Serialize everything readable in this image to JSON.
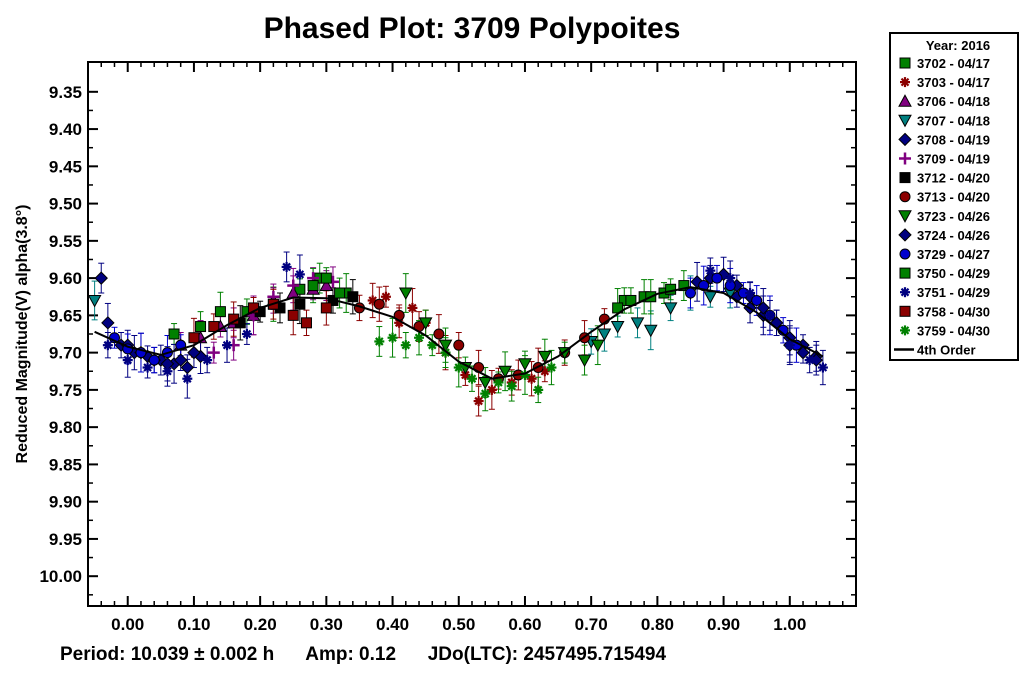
{
  "chart_data": {
    "type": "scatter",
    "title": "Phased Plot: 3709 Polypoites",
    "ylabel": "Reduced Magnitude(V) alpha(3.8°)",
    "xlabel": "",
    "xlim": [
      -0.06,
      1.1
    ],
    "ylim": [
      10.04,
      9.31
    ],
    "y_inverted": true,
    "grid": false,
    "legend_position": "right",
    "x_ticks": [
      "0.00",
      "0.10",
      "0.20",
      "0.30",
      "0.40",
      "0.50",
      "0.60",
      "0.70",
      "0.80",
      "0.90",
      "1.00"
    ],
    "y_ticks": [
      "9.35",
      "9.40",
      "9.45",
      "9.50",
      "9.55",
      "9.60",
      "9.65",
      "9.70",
      "9.75",
      "9.80",
      "9.85",
      "9.90",
      "9.95",
      "10.00"
    ],
    "legend_title": "Year: 2016",
    "fit": {
      "name": "4th Order",
      "x": [
        -0.05,
        0.0,
        0.05,
        0.1,
        0.15,
        0.2,
        0.25,
        0.3,
        0.35,
        0.4,
        0.45,
        0.5,
        0.55,
        0.6,
        0.65,
        0.7,
        0.75,
        0.8,
        0.85,
        0.9,
        0.95,
        1.0,
        1.05
      ],
      "y": [
        9.672,
        9.692,
        9.703,
        9.69,
        9.663,
        9.64,
        9.626,
        9.627,
        9.638,
        9.652,
        9.677,
        9.712,
        9.735,
        9.728,
        9.705,
        9.672,
        9.642,
        9.621,
        9.612,
        9.62,
        9.646,
        9.682,
        9.705
      ]
    },
    "series": [
      {
        "name": "3702 - 04/17",
        "color": "#008000",
        "marker": "square",
        "x": [
          0.07,
          0.11,
          0.14,
          0.18,
          0.22,
          0.26,
          0.29,
          0.33,
          0.75,
          0.78,
          0.81,
          0.84
        ],
        "y": [
          9.675,
          9.665,
          9.645,
          9.645,
          9.635,
          9.615,
          9.6,
          9.62,
          9.63,
          9.625,
          9.62,
          9.61
        ]
      },
      {
        "name": "3703 - 04/17",
        "color": "#8B0000",
        "marker": "asterisk",
        "x": [
          0.37,
          0.39,
          0.41,
          0.43,
          0.45,
          0.48,
          0.51,
          0.53,
          0.55,
          0.58,
          0.61,
          0.63
        ],
        "y": [
          9.63,
          9.625,
          9.66,
          9.64,
          9.66,
          9.7,
          9.73,
          9.765,
          9.75,
          9.74,
          9.735,
          9.725
        ]
      },
      {
        "name": "3706 - 04/18",
        "color": "#800080",
        "marker": "triangle-up",
        "x": [
          0.08,
          0.11,
          0.14,
          0.16,
          0.19,
          0.22,
          0.25,
          0.28,
          0.3
        ],
        "y": [
          9.69,
          9.68,
          9.665,
          9.66,
          9.65,
          9.63,
          9.62,
          9.615,
          9.61
        ]
      },
      {
        "name": "3707 - 04/18",
        "color": "#008080",
        "marker": "triangle-down",
        "x": [
          -0.05,
          0.7,
          0.72,
          0.74,
          0.77,
          0.79,
          0.82,
          0.85,
          0.88,
          0.91
        ],
        "y": [
          9.63,
          9.685,
          9.675,
          9.665,
          9.66,
          9.67,
          9.64,
          9.62,
          9.625,
          9.62
        ]
      },
      {
        "name": "3708 - 04/19",
        "color": "#000080",
        "marker": "diamond",
        "x": [
          -0.04,
          -0.03,
          -0.01,
          0.01,
          0.03,
          0.05,
          0.07,
          0.09,
          0.11,
          0.92,
          0.94,
          0.96,
          0.98,
          1.0,
          1.02,
          1.04
        ],
        "y": [
          9.6,
          9.66,
          9.69,
          9.7,
          9.705,
          9.71,
          9.715,
          9.72,
          9.705,
          9.625,
          9.64,
          9.65,
          9.66,
          9.68,
          9.69,
          9.705
        ]
      },
      {
        "name": "3709 - 04/19",
        "color": "#800080",
        "marker": "plus",
        "x": [
          0.13,
          0.16,
          0.19,
          0.22,
          0.25,
          0.28,
          0.31
        ],
        "y": [
          9.7,
          9.69,
          9.65,
          9.625,
          9.61,
          9.6,
          9.605
        ]
      },
      {
        "name": "3712 - 04/20",
        "color": "#000000",
        "marker": "square",
        "x": [
          0.17,
          0.2,
          0.23,
          0.26,
          0.31,
          0.34
        ],
        "y": [
          9.66,
          9.645,
          9.64,
          9.635,
          9.63,
          9.625
        ]
      },
      {
        "name": "3713 - 04/20",
        "color": "#8B0000",
        "marker": "circle",
        "x": [
          0.35,
          0.38,
          0.41,
          0.44,
          0.47,
          0.5,
          0.53,
          0.56,
          0.59,
          0.62,
          0.66,
          0.69,
          0.72
        ],
        "y": [
          9.64,
          9.635,
          9.65,
          9.665,
          9.675,
          9.69,
          9.72,
          9.735,
          9.73,
          9.72,
          9.7,
          9.68,
          9.655
        ]
      },
      {
        "name": "3723 - 04/26",
        "color": "#008000",
        "marker": "triangle-down",
        "x": [
          0.42,
          0.45,
          0.48,
          0.51,
          0.54,
          0.57,
          0.6,
          0.63,
          0.66,
          0.69,
          0.71
        ],
        "y": [
          9.62,
          9.66,
          9.69,
          9.72,
          9.74,
          9.725,
          9.715,
          9.705,
          9.7,
          9.71,
          9.69
        ]
      },
      {
        "name": "3724 - 04/26",
        "color": "#000080",
        "marker": "diamond",
        "x": [
          0.0,
          0.02,
          0.04,
          0.06,
          0.08,
          0.1,
          0.86,
          0.88,
          0.9,
          0.92,
          0.94,
          0.96,
          0.98,
          1.0,
          1.02,
          1.04
        ],
        "y": [
          9.69,
          9.7,
          9.71,
          9.715,
          9.71,
          9.7,
          9.605,
          9.6,
          9.595,
          9.61,
          9.625,
          9.64,
          9.66,
          9.69,
          9.7,
          9.71
        ]
      },
      {
        "name": "3729 - 04/27",
        "color": "#0000CD",
        "marker": "circle",
        "x": [
          -0.02,
          0.0,
          0.02,
          0.04,
          0.06,
          0.08,
          0.85,
          0.87,
          0.89,
          0.91,
          0.93,
          0.95,
          0.97,
          0.99,
          1.01
        ],
        "y": [
          9.68,
          9.695,
          9.7,
          9.71,
          9.7,
          9.69,
          9.62,
          9.61,
          9.6,
          9.61,
          9.62,
          9.63,
          9.65,
          9.67,
          9.69
        ]
      },
      {
        "name": "3750 - 04/29",
        "color": "#008000",
        "marker": "square",
        "x": [
          0.28,
          0.3,
          0.32,
          0.74,
          0.76,
          0.79,
          0.82
        ],
        "y": [
          9.61,
          9.6,
          9.62,
          9.64,
          9.63,
          9.625,
          9.615
        ]
      },
      {
        "name": "3751 - 04/29",
        "color": "#000080",
        "marker": "asterisk",
        "x": [
          -0.03,
          0.0,
          0.03,
          0.06,
          0.09,
          0.12,
          0.15,
          0.18,
          0.24,
          0.26,
          0.88,
          0.91,
          0.94,
          0.97,
          1.0,
          1.03,
          1.05
        ],
        "y": [
          9.69,
          9.71,
          9.72,
          9.725,
          9.735,
          9.71,
          9.69,
          9.675,
          9.585,
          9.595,
          9.59,
          9.6,
          9.62,
          9.65,
          9.69,
          9.71,
          9.72
        ]
      },
      {
        "name": "3758 - 04/30",
        "color": "#8B0000",
        "marker": "square",
        "x": [
          0.1,
          0.13,
          0.16,
          0.19,
          0.22,
          0.25,
          0.27,
          0.3
        ],
        "y": [
          9.68,
          9.665,
          9.655,
          9.64,
          9.635,
          9.65,
          9.66,
          9.64
        ]
      },
      {
        "name": "3759 - 04/30",
        "color": "#008000",
        "marker": "asterisk",
        "x": [
          0.38,
          0.4,
          0.42,
          0.44,
          0.46,
          0.48,
          0.5,
          0.52,
          0.54,
          0.56,
          0.58,
          0.6,
          0.62,
          0.64
        ],
        "y": [
          9.685,
          9.68,
          9.69,
          9.68,
          9.69,
          9.7,
          9.72,
          9.735,
          9.755,
          9.74,
          9.745,
          9.73,
          9.75,
          9.72
        ]
      }
    ]
  },
  "footer": {
    "period": "Period: 10.039 ± 0.002 h",
    "amp": "Amp: 0.12",
    "jdo": "JDo(LTC): 2457495.715494"
  }
}
